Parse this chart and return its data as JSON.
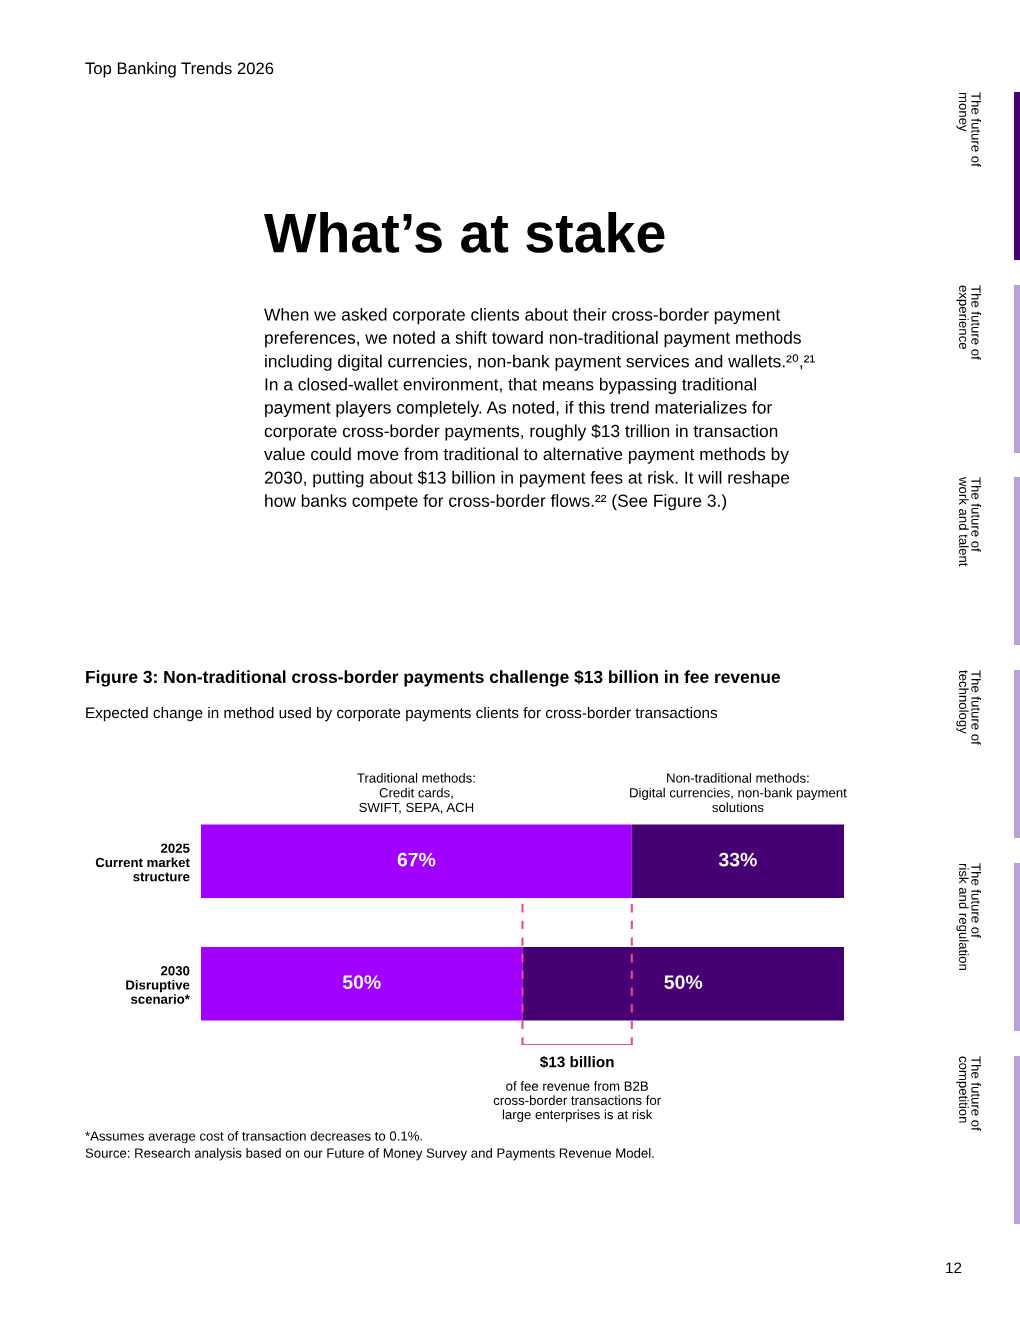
{
  "chart_data": {
    "type": "bar",
    "orientation": "horizontal",
    "stacked": true,
    "title": "Figure 3: Non-traditional cross-border payments challenge $13 billion in fee revenue",
    "subtitle": "Expected change in method used by corporate payments clients for cross-border transactions",
    "categories": [
      "2025\nCurrent market\nstructure",
      "2030\nDisruptive\nscenario*"
    ],
    "series": [
      {
        "name": "Traditional methods:\nCredit cards,\nSWIFT, SEPA, ACH",
        "color": "#a100ff",
        "values": [
          67,
          50
        ],
        "value_labels": [
          "67%",
          "50%"
        ]
      },
      {
        "name": "Non-traditional methods:\nDigital currencies, non-bank payment\nsolutions",
        "color": "#460073",
        "values": [
          33,
          50
        ],
        "value_labels": [
          "33%",
          "50%"
        ]
      }
    ],
    "xlim": [
      0,
      100
    ],
    "tick_labels": "y",
    "grid": false,
    "ref_lines": [
      {
        "axis": "x",
        "value": 67,
        "color": "#e8479a",
        "line_style": "dashed"
      },
      {
        "axis": "x",
        "value": 50,
        "color": "#e8479a",
        "line_style": "dashed"
      }
    ],
    "annotations": [
      "Top Banking Trends 2026",
      "What’s at stake",
      "When we asked corporate clients about their cross-border payment\npreferences, we noted a shift toward non-traditional payment methods\nincluding digital currencies, non-bank payment services and wallets.²⁰,²¹\nIn a closed-wallet environment, that means bypassing traditional\npayment players completely. As noted, if this trend materializes for\ncorporate cross-border payments, roughly $13 trillion in transaction\nvalue could move from traditional to alternative payment methods by\n2030, putting about $13 billion in payment fees at risk. It will reshape\nhow banks compete for cross-border flows.²² (See Figure 3.)",
      "$13 billion\nof fee revenue from B2B\ncross-border transactions for\nlarge enterprises is at risk",
      "*Assumes average cost of transaction decreases to 0.1%.\nSource: Research analysis based on our Future of Money Survey and Payments Revenue Model.",
      "12",
      "The future of\nmoney",
      "The future of\nexperience",
      "The future of\nwork and talent",
      "The future of\ntechnology",
      "The future of\nrisk and regulation",
      "The future of\ncompetition"
    ]
  }
}
